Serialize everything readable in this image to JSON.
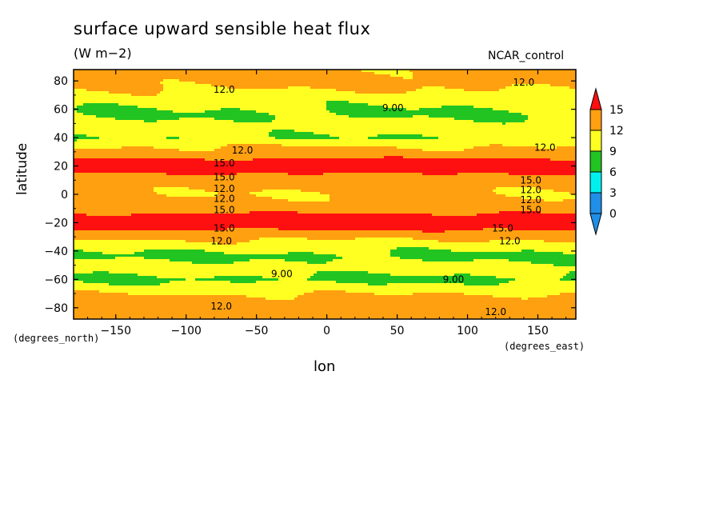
{
  "chart_data": {
    "type": "heatmap",
    "title": "surface upward sensible heat flux",
    "units": "(W m−2)",
    "run_label": "NCAR_control",
    "xlabel": "lon",
    "ylabel": "latitude",
    "x_units_note": "(degrees_east)",
    "y_units_note": "(degrees_north)",
    "xlim": [
      -180,
      177
    ],
    "ylim": [
      -88,
      88
    ],
    "x_ticks": [
      -150,
      -100,
      -50,
      0,
      50,
      100,
      150
    ],
    "x_tick_labels": [
      "−150",
      "−100",
      "−50",
      "0",
      "50",
      "100",
      "150"
    ],
    "y_ticks": [
      80,
      60,
      40,
      20,
      0,
      -20,
      -40,
      -60,
      -80
    ],
    "y_tick_labels": [
      "80",
      "60",
      "40",
      "20",
      "0",
      "−20",
      "−40",
      "−60",
      "−80"
    ],
    "colorbar": {
      "levels": [
        0,
        3,
        6,
        9,
        12,
        15
      ],
      "level_labels": [
        "0",
        "3",
        "6",
        "9",
        "12",
        "15"
      ],
      "colors": [
        "#1f8fe8",
        "#00f0f0",
        "#22c422",
        "#ffff22",
        "#ffa010",
        "#ff1010"
      ]
    },
    "zonal_mean_by_latitude": {
      "lat": [
        88,
        84,
        80,
        76,
        72,
        68,
        64,
        60,
        56,
        52,
        48,
        44,
        40,
        36,
        32,
        28,
        24,
        20,
        16,
        12,
        8,
        4,
        0,
        -4,
        -8,
        -12,
        -16,
        -20,
        -24,
        -28,
        -32,
        -36,
        -40,
        -44,
        -48,
        -52,
        -56,
        -60,
        -64,
        -68,
        -72,
        -76,
        -80,
        -84,
        -88
      ],
      "value": [
        12.5,
        13,
        13,
        12.5,
        11.5,
        10.5,
        9.8,
        9,
        8.6,
        9.5,
        10.5,
        9.8,
        9,
        11,
        12.5,
        13.8,
        15.5,
        16,
        15.5,
        14,
        12.8,
        12.3,
        12,
        12.3,
        13,
        14.5,
        15.8,
        16,
        15.5,
        13.8,
        12,
        10.5,
        9.3,
        8.3,
        9.5,
        10.5,
        9.3,
        8.3,
        9.8,
        11,
        12.5,
        13.5,
        13.5,
        13.5,
        13.5
      ]
    },
    "contour_labels": [
      {
        "text": "12.0",
        "lon": -73,
        "lat": 74
      },
      {
        "text": "12.0",
        "lon": 140,
        "lat": 79
      },
      {
        "text": "9.00",
        "lon": 47,
        "lat": 61
      },
      {
        "text": "12.0",
        "lon": -60,
        "lat": 31
      },
      {
        "text": "12.0",
        "lon": 155,
        "lat": 33
      },
      {
        "text": "15.0",
        "lon": -73,
        "lat": 22
      },
      {
        "text": "15.0",
        "lon": -73,
        "lat": 12
      },
      {
        "text": "15.0",
        "lon": 145,
        "lat": 10
      },
      {
        "text": "12.0",
        "lon": -73,
        "lat": 4
      },
      {
        "text": "12.0",
        "lon": -73,
        "lat": -3
      },
      {
        "text": "12.0",
        "lon": 145,
        "lat": 3
      },
      {
        "text": "12.0",
        "lon": 145,
        "lat": -4
      },
      {
        "text": "15.0",
        "lon": -73,
        "lat": -11
      },
      {
        "text": "15.0",
        "lon": 145,
        "lat": -11
      },
      {
        "text": "15.0",
        "lon": -73,
        "lat": -24
      },
      {
        "text": "15.0",
        "lon": 125,
        "lat": -24
      },
      {
        "text": "12.0",
        "lon": -75,
        "lat": -33
      },
      {
        "text": "12.0",
        "lon": 130,
        "lat": -33
      },
      {
        "text": "9.00",
        "lon": -32,
        "lat": -56
      },
      {
        "text": "9.00",
        "lon": 90,
        "lat": -60
      },
      {
        "text": "12.0",
        "lon": -75,
        "lat": -79
      },
      {
        "text": "12.0",
        "lon": 120,
        "lat": -83
      }
    ]
  }
}
